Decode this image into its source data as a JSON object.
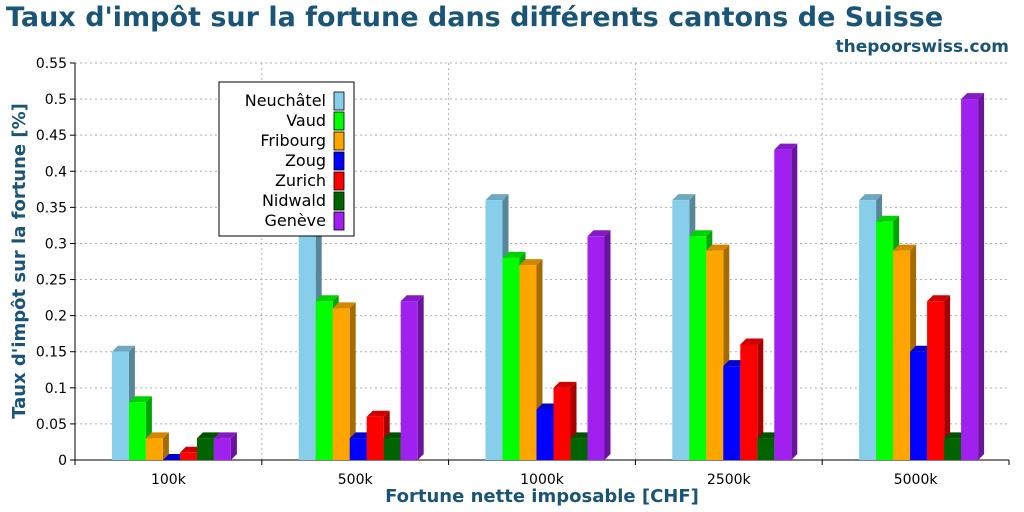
{
  "header": {
    "title": "Taux d'impôt sur la fortune dans différents cantons de Suisse",
    "brand": "thepoorswiss.com"
  },
  "theme": {
    "title_color": "#1a5577",
    "grid_color": "#b0b0b0"
  },
  "chart_data": {
    "type": "bar",
    "style": "3d-grouped",
    "title": "Taux d'impôt sur la fortune dans différents cantons de Suisse",
    "xlabel": "Fortune nette imposable [CHF]",
    "ylabel": "Taux d'impôt sur la fortune [%]",
    "ylim": [
      0,
      0.55
    ],
    "yticks": [
      "0",
      "0.05",
      "0.1",
      "0.15",
      "0.2",
      "0.25",
      "0.3",
      "0.35",
      "0.4",
      "0.45",
      "0.5",
      "0.55"
    ],
    "grid": true,
    "legend_position": "top-left",
    "categories": [
      "100k",
      "500k",
      "1000k",
      "2500k",
      "5000k"
    ],
    "series": [
      {
        "name": "Neuchâtel",
        "color": "#87ceeb",
        "values": [
          0.15,
          0.33,
          0.36,
          0.36,
          0.36
        ]
      },
      {
        "name": "Vaud",
        "color": "#00ff00",
        "values": [
          0.08,
          0.22,
          0.28,
          0.31,
          0.33
        ]
      },
      {
        "name": "Fribourg",
        "color": "#ffa500",
        "values": [
          0.03,
          0.21,
          0.27,
          0.29,
          0.29
        ]
      },
      {
        "name": "Zoug",
        "color": "#0000ff",
        "values": [
          0.0,
          0.03,
          0.07,
          0.13,
          0.15
        ]
      },
      {
        "name": "Zurich",
        "color": "#ff0000",
        "values": [
          0.01,
          0.06,
          0.1,
          0.16,
          0.22
        ]
      },
      {
        "name": "Nidwald",
        "color": "#006400",
        "values": [
          0.03,
          0.03,
          0.03,
          0.03,
          0.03
        ]
      },
      {
        "name": "Genève",
        "color": "#a020f0",
        "values": [
          0.03,
          0.22,
          0.31,
          0.43,
          0.5
        ]
      }
    ]
  }
}
